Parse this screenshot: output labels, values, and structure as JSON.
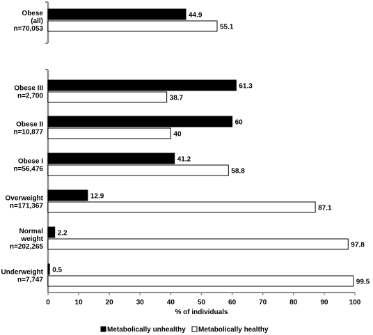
{
  "colors": {
    "unhealthy": "#000000",
    "healthy": "#ffffff",
    "axis": "#8c8c8c"
  },
  "chart_data": {
    "type": "bar",
    "orientation": "horizontal",
    "xlabel": "% of individuals",
    "xlim": [
      0,
      100
    ],
    "xticks": [
      "0",
      "10",
      "20",
      "30",
      "40",
      "50",
      "60",
      "70",
      "80",
      "90",
      "100"
    ],
    "legend_position": "bottom",
    "series": [
      {
        "name": "Metabolically unhealthy",
        "color": "#000000"
      },
      {
        "name": "Metabolically healthy",
        "color": "#ffffff"
      }
    ],
    "panels": [
      {
        "groups": [
          {
            "label": [
              "Obese",
              "(all)",
              "n=70,053"
            ],
            "values": [
              44.9,
              55.1
            ],
            "value_labels": [
              "44.9",
              "55.1"
            ]
          }
        ]
      },
      {
        "groups": [
          {
            "label": [
              "Obese III",
              "n=2,700"
            ],
            "values": [
              61.3,
              38.7
            ],
            "value_labels": [
              "61.3",
              "38.7"
            ]
          },
          {
            "label": [
              "Obese II",
              "n=10,877"
            ],
            "values": [
              60,
              40
            ],
            "value_labels": [
              "60",
              "40"
            ]
          },
          {
            "label": [
              "Obese I",
              "n=56,476"
            ],
            "values": [
              41.2,
              58.8
            ],
            "value_labels": [
              "41.2",
              "58.8"
            ]
          },
          {
            "label": [
              "Overweight",
              "n=171,367"
            ],
            "values": [
              12.9,
              87.1
            ],
            "value_labels": [
              "12.9",
              "87.1"
            ]
          },
          {
            "label": [
              "Normal",
              "weight",
              "n=202,265"
            ],
            "values": [
              2.2,
              97.8
            ],
            "value_labels": [
              "2.2",
              "97.8"
            ]
          },
          {
            "label": [
              "Underweight",
              "n=7,747"
            ],
            "values": [
              0.5,
              99.5
            ],
            "value_labels": [
              "0.5",
              "99.5"
            ]
          }
        ]
      }
    ]
  }
}
